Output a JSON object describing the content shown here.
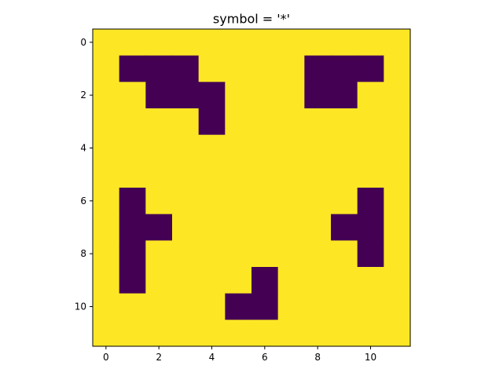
{
  "chart_data": {
    "type": "heatmap",
    "title": "symbol = '*'",
    "xlabel": "",
    "ylabel": "",
    "x_ticks": [
      "0",
      "2",
      "4",
      "6",
      "8",
      "10"
    ],
    "y_ticks": [
      "0",
      "2",
      "4",
      "6",
      "8",
      "10"
    ],
    "xlim": [
      -0.5,
      11.5
    ],
    "ylim": [
      11.5,
      -0.5
    ],
    "grid": false,
    "colors": {
      "high": "#fde725",
      "low": "#440154"
    },
    "values": [
      [
        1,
        1,
        1,
        1,
        1,
        1,
        1,
        1,
        1,
        1,
        1,
        1
      ],
      [
        1,
        0,
        0,
        0,
        1,
        1,
        1,
        1,
        0,
        0,
        0,
        1
      ],
      [
        1,
        1,
        0,
        0,
        0,
        1,
        1,
        1,
        0,
        0,
        1,
        1
      ],
      [
        1,
        1,
        1,
        1,
        0,
        1,
        1,
        1,
        1,
        1,
        1,
        1
      ],
      [
        1,
        1,
        1,
        1,
        1,
        1,
        1,
        1,
        1,
        1,
        1,
        1
      ],
      [
        1,
        1,
        1,
        1,
        1,
        1,
        1,
        1,
        1,
        1,
        1,
        1
      ],
      [
        1,
        0,
        1,
        1,
        1,
        1,
        1,
        1,
        1,
        1,
        0,
        1
      ],
      [
        1,
        0,
        0,
        1,
        1,
        1,
        1,
        1,
        1,
        0,
        0,
        1
      ],
      [
        1,
        0,
        1,
        1,
        1,
        1,
        1,
        1,
        1,
        1,
        0,
        1
      ],
      [
        1,
        0,
        1,
        1,
        1,
        1,
        0,
        1,
        1,
        1,
        1,
        1
      ],
      [
        1,
        1,
        1,
        1,
        1,
        0,
        0,
        1,
        1,
        1,
        1,
        1
      ],
      [
        1,
        1,
        1,
        1,
        1,
        1,
        1,
        1,
        1,
        1,
        1,
        1
      ]
    ]
  }
}
